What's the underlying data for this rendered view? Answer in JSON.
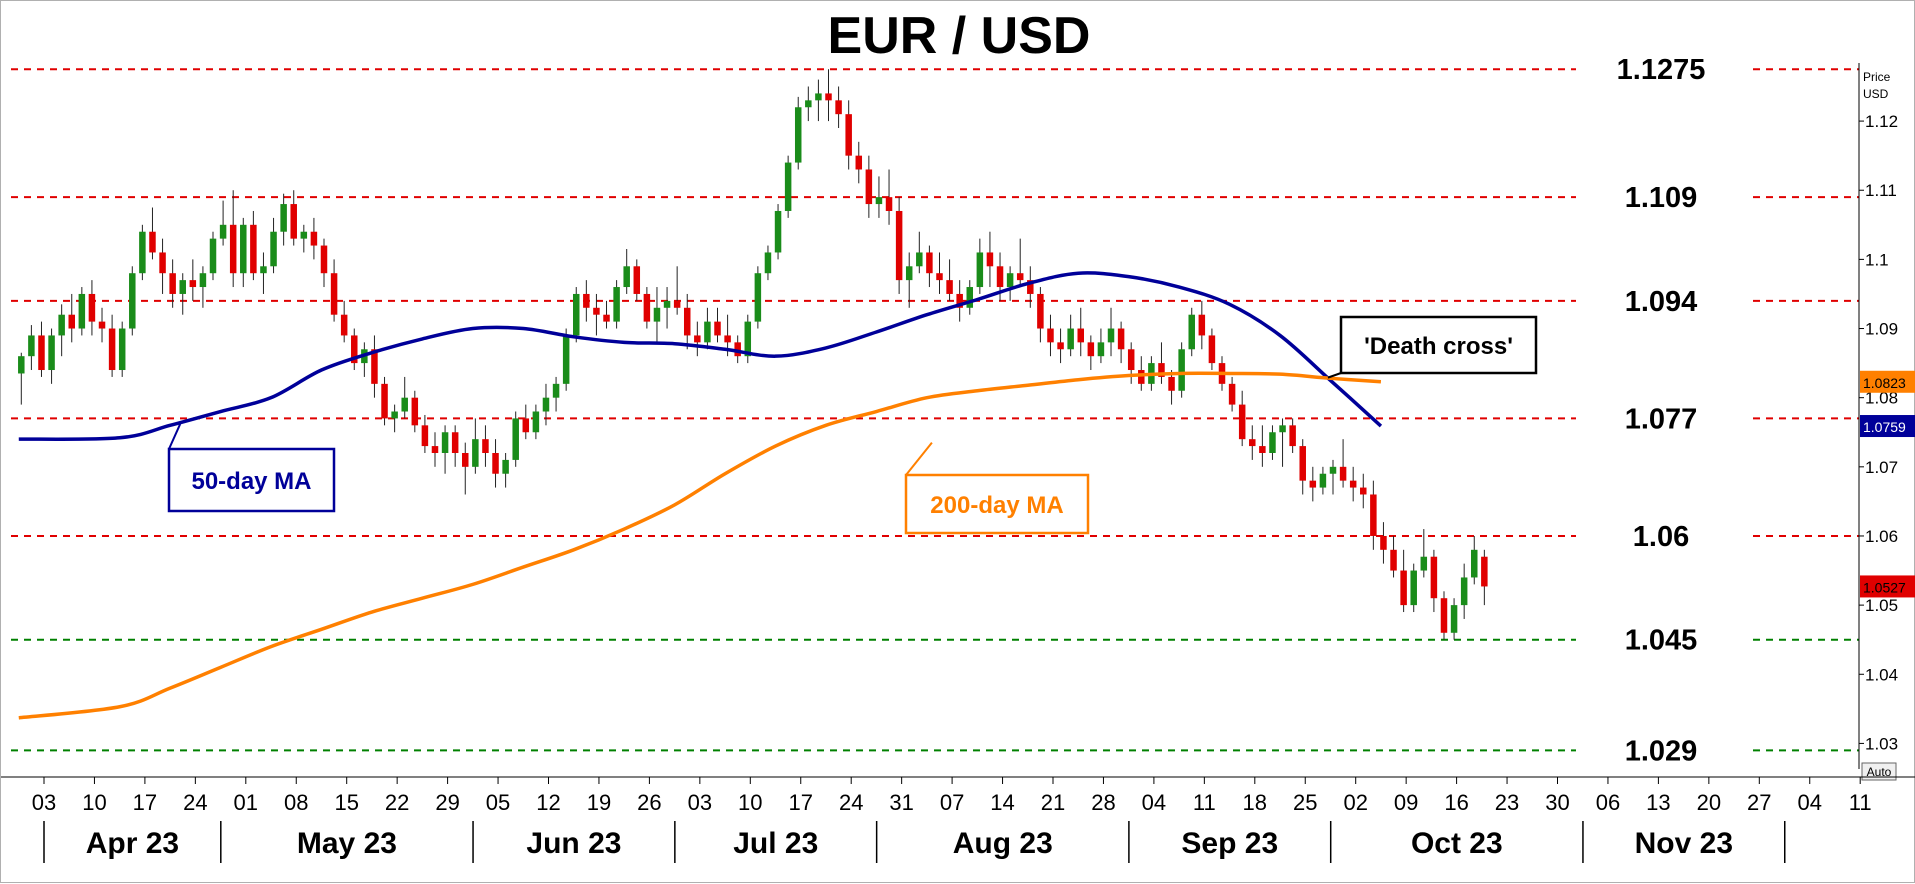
{
  "chart_data": {
    "type": "candlestick",
    "title": "EUR / USD",
    "axis_unit_label": [
      "Price",
      "USD"
    ],
    "auto_label": "Auto",
    "ylim": [
      1.0263,
      1.1284
    ],
    "y_ticks": [
      "1.12",
      "1.11",
      "1.1",
      "1.09",
      "1.08",
      "1.07",
      "1.06",
      "1.05",
      "1.04",
      "1.03"
    ],
    "x_ticks": [
      "03",
      "10",
      "17",
      "24",
      "01",
      "08",
      "15",
      "22",
      "29",
      "05",
      "12",
      "19",
      "26",
      "03",
      "10",
      "17",
      "24",
      "31",
      "07",
      "14",
      "21",
      "28",
      "04",
      "11",
      "18",
      "25",
      "02",
      "09",
      "16",
      "23",
      "30",
      "06",
      "13",
      "20",
      "27",
      "04",
      "11"
    ],
    "months": [
      {
        "label": "Apr 23",
        "start_week": 0
      },
      {
        "label": "May 23",
        "start_week": 4
      },
      {
        "label": "Jun 23",
        "start_week": 9
      },
      {
        "label": "Jul 23",
        "start_week": 13
      },
      {
        "label": "Aug 23",
        "start_week": 17
      },
      {
        "label": "Sep 23",
        "start_week": 22
      },
      {
        "label": "Oct 23",
        "start_week": 26
      },
      {
        "label": "Nov 23",
        "start_week": 31
      }
    ],
    "month_dividers": [
      4,
      9,
      13,
      17,
      22,
      26,
      31,
      35
    ],
    "levels": [
      {
        "value": 1.1275,
        "label": "1.1275",
        "color": "#e00000"
      },
      {
        "value": 1.109,
        "label": "1.109",
        "color": "#e00000"
      },
      {
        "value": 1.094,
        "label": "1.094",
        "color": "#e00000"
      },
      {
        "value": 1.077,
        "label": "1.077",
        "color": "#e00000"
      },
      {
        "value": 1.06,
        "label": "1.06",
        "color": "#e00000"
      },
      {
        "value": 1.045,
        "label": "1.045",
        "color": "#008000"
      },
      {
        "value": 1.029,
        "label": "1.029",
        "color": "#008000"
      }
    ],
    "candles_start_x_week": -0.45,
    "candles_per_week": 5,
    "candles": [
      [
        1.0835,
        1.0865,
        1.079,
        1.086
      ],
      [
        1.086,
        1.0905,
        1.084,
        1.089
      ],
      [
        1.089,
        1.091,
        1.083,
        1.084
      ],
      [
        1.084,
        1.09,
        1.082,
        1.089
      ],
      [
        1.089,
        1.0935,
        1.086,
        1.092
      ],
      [
        1.092,
        1.095,
        1.088,
        1.09
      ],
      [
        1.09,
        1.096,
        1.089,
        1.095
      ],
      [
        1.095,
        1.097,
        1.089,
        1.091
      ],
      [
        1.091,
        1.093,
        1.088,
        1.09
      ],
      [
        1.09,
        1.092,
        1.083,
        1.084
      ],
      [
        1.084,
        1.091,
        1.083,
        1.09
      ],
      [
        1.09,
        1.099,
        1.089,
        1.098
      ],
      [
        1.098,
        1.105,
        1.097,
        1.104
      ],
      [
        1.104,
        1.1075,
        1.1,
        1.101
      ],
      [
        1.101,
        1.103,
        1.095,
        1.098
      ],
      [
        1.098,
        1.1,
        1.093,
        1.095
      ],
      [
        1.095,
        1.098,
        1.092,
        1.097
      ],
      [
        1.097,
        1.1,
        1.094,
        1.096
      ],
      [
        1.096,
        1.099,
        1.093,
        1.098
      ],
      [
        1.098,
        1.104,
        1.097,
        1.103
      ],
      [
        1.103,
        1.1085,
        1.102,
        1.105
      ],
      [
        1.105,
        1.11,
        1.096,
        1.098
      ],
      [
        1.098,
        1.106,
        1.096,
        1.105
      ],
      [
        1.105,
        1.107,
        1.097,
        1.098
      ],
      [
        1.098,
        1.101,
        1.095,
        1.099
      ],
      [
        1.099,
        1.106,
        1.098,
        1.104
      ],
      [
        1.104,
        1.1095,
        1.102,
        1.108
      ],
      [
        1.108,
        1.11,
        1.102,
        1.103
      ],
      [
        1.103,
        1.105,
        1.101,
        1.104
      ],
      [
        1.104,
        1.106,
        1.1,
        1.102
      ],
      [
        1.102,
        1.103,
        1.096,
        1.098
      ],
      [
        1.098,
        1.1,
        1.091,
        1.092
      ],
      [
        1.092,
        1.094,
        1.088,
        1.089
      ],
      [
        1.089,
        1.09,
        1.084,
        1.085
      ],
      [
        1.085,
        1.088,
        1.083,
        1.087
      ],
      [
        1.087,
        1.089,
        1.08,
        1.082
      ],
      [
        1.082,
        1.083,
        1.076,
        1.077
      ],
      [
        1.077,
        1.079,
        1.075,
        1.078
      ],
      [
        1.078,
        1.083,
        1.077,
        1.08
      ],
      [
        1.08,
        1.081,
        1.075,
        1.076
      ],
      [
        1.076,
        1.0775,
        1.072,
        1.073
      ],
      [
        1.073,
        1.075,
        1.07,
        1.072
      ],
      [
        1.072,
        1.076,
        1.069,
        1.075
      ],
      [
        1.075,
        1.076,
        1.07,
        1.072
      ],
      [
        1.072,
        1.0735,
        1.066,
        1.07
      ],
      [
        1.07,
        1.077,
        1.069,
        1.074
      ],
      [
        1.074,
        1.076,
        1.07,
        1.072
      ],
      [
        1.072,
        1.074,
        1.067,
        1.069
      ],
      [
        1.069,
        1.072,
        1.067,
        1.071
      ],
      [
        1.071,
        1.078,
        1.07,
        1.077
      ],
      [
        1.077,
        1.079,
        1.074,
        1.075
      ],
      [
        1.075,
        1.079,
        1.074,
        1.078
      ],
      [
        1.078,
        1.082,
        1.076,
        1.08
      ],
      [
        1.08,
        1.083,
        1.078,
        1.082
      ],
      [
        1.082,
        1.09,
        1.081,
        1.089
      ],
      [
        1.089,
        1.096,
        1.088,
        1.095
      ],
      [
        1.095,
        1.097,
        1.091,
        1.093
      ],
      [
        1.093,
        1.095,
        1.089,
        1.092
      ],
      [
        1.092,
        1.094,
        1.09,
        1.091
      ],
      [
        1.091,
        1.097,
        1.09,
        1.096
      ],
      [
        1.096,
        1.1015,
        1.095,
        1.099
      ],
      [
        1.099,
        1.1,
        1.094,
        1.095
      ],
      [
        1.095,
        1.096,
        1.09,
        1.091
      ],
      [
        1.091,
        1.096,
        1.088,
        1.093
      ],
      [
        1.093,
        1.096,
        1.09,
        1.094
      ],
      [
        1.094,
        1.099,
        1.092,
        1.093
      ],
      [
        1.093,
        1.095,
        1.087,
        1.089
      ],
      [
        1.089,
        1.091,
        1.086,
        1.088
      ],
      [
        1.088,
        1.093,
        1.087,
        1.091
      ],
      [
        1.091,
        1.093,
        1.088,
        1.089
      ],
      [
        1.089,
        1.092,
        1.086,
        1.088
      ],
      [
        1.088,
        1.089,
        1.085,
        1.086
      ],
      [
        1.086,
        1.092,
        1.085,
        1.091
      ],
      [
        1.091,
        1.099,
        1.09,
        1.098
      ],
      [
        1.098,
        1.102,
        1.097,
        1.101
      ],
      [
        1.101,
        1.108,
        1.1,
        1.107
      ],
      [
        1.107,
        1.115,
        1.106,
        1.114
      ],
      [
        1.114,
        1.1235,
        1.113,
        1.122
      ],
      [
        1.122,
        1.125,
        1.12,
        1.123
      ],
      [
        1.123,
        1.126,
        1.12,
        1.124
      ],
      [
        1.124,
        1.1275,
        1.12,
        1.123
      ],
      [
        1.123,
        1.125,
        1.119,
        1.121
      ],
      [
        1.121,
        1.123,
        1.113,
        1.115
      ],
      [
        1.115,
        1.117,
        1.111,
        1.113
      ],
      [
        1.113,
        1.115,
        1.106,
        1.108
      ],
      [
        1.108,
        1.112,
        1.106,
        1.109
      ],
      [
        1.109,
        1.113,
        1.105,
        1.107
      ],
      [
        1.107,
        1.109,
        1.095,
        1.097
      ],
      [
        1.097,
        1.101,
        1.093,
        1.099
      ],
      [
        1.099,
        1.104,
        1.098,
        1.101
      ],
      [
        1.101,
        1.102,
        1.096,
        1.098
      ],
      [
        1.098,
        1.101,
        1.095,
        1.097
      ],
      [
        1.097,
        1.1,
        1.094,
        1.095
      ],
      [
        1.095,
        1.097,
        1.091,
        1.093
      ],
      [
        1.093,
        1.097,
        1.092,
        1.096
      ],
      [
        1.096,
        1.103,
        1.095,
        1.101
      ],
      [
        1.101,
        1.104,
        1.096,
        1.099
      ],
      [
        1.099,
        1.101,
        1.094,
        1.096
      ],
      [
        1.096,
        1.099,
        1.094,
        1.098
      ],
      [
        1.098,
        1.103,
        1.096,
        1.097
      ],
      [
        1.097,
        1.099,
        1.093,
        1.095
      ],
      [
        1.095,
        1.096,
        1.088,
        1.09
      ],
      [
        1.09,
        1.092,
        1.086,
        1.088
      ],
      [
        1.088,
        1.09,
        1.085,
        1.087
      ],
      [
        1.087,
        1.092,
        1.086,
        1.09
      ],
      [
        1.09,
        1.093,
        1.086,
        1.088
      ],
      [
        1.088,
        1.089,
        1.084,
        1.086
      ],
      [
        1.086,
        1.09,
        1.085,
        1.088
      ],
      [
        1.088,
        1.093,
        1.086,
        1.09
      ],
      [
        1.09,
        1.091,
        1.085,
        1.087
      ],
      [
        1.087,
        1.088,
        1.082,
        1.084
      ],
      [
        1.084,
        1.086,
        1.081,
        1.082
      ],
      [
        1.082,
        1.086,
        1.081,
        1.085
      ],
      [
        1.085,
        1.088,
        1.082,
        1.083
      ],
      [
        1.083,
        1.084,
        1.079,
        1.081
      ],
      [
        1.081,
        1.088,
        1.08,
        1.087
      ],
      [
        1.087,
        1.093,
        1.086,
        1.092
      ],
      [
        1.092,
        1.094,
        1.087,
        1.089
      ],
      [
        1.089,
        1.09,
        1.084,
        1.085
      ],
      [
        1.085,
        1.086,
        1.081,
        1.082
      ],
      [
        1.082,
        1.083,
        1.078,
        1.079
      ],
      [
        1.079,
        1.081,
        1.073,
        1.074
      ],
      [
        1.074,
        1.076,
        1.071,
        1.073
      ],
      [
        1.073,
        1.076,
        1.07,
        1.072
      ],
      [
        1.072,
        1.076,
        1.071,
        1.075
      ],
      [
        1.075,
        1.077,
        1.07,
        1.076
      ],
      [
        1.076,
        1.077,
        1.072,
        1.073
      ],
      [
        1.073,
        1.074,
        1.066,
        1.068
      ],
      [
        1.068,
        1.07,
        1.065,
        1.067
      ],
      [
        1.067,
        1.07,
        1.066,
        1.069
      ],
      [
        1.069,
        1.071,
        1.066,
        1.07
      ],
      [
        1.07,
        1.074,
        1.067,
        1.068
      ],
      [
        1.068,
        1.07,
        1.065,
        1.067
      ],
      [
        1.067,
        1.069,
        1.064,
        1.066
      ],
      [
        1.066,
        1.068,
        1.058,
        1.06
      ],
      [
        1.06,
        1.062,
        1.056,
        1.058
      ],
      [
        1.058,
        1.06,
        1.054,
        1.055
      ],
      [
        1.055,
        1.058,
        1.049,
        1.05
      ],
      [
        1.05,
        1.056,
        1.049,
        1.055
      ],
      [
        1.055,
        1.061,
        1.054,
        1.057
      ],
      [
        1.057,
        1.058,
        1.049,
        1.051
      ],
      [
        1.051,
        1.052,
        1.045,
        1.046
      ],
      [
        1.046,
        1.051,
        1.045,
        1.05
      ],
      [
        1.05,
        1.056,
        1.048,
        1.054
      ],
      [
        1.054,
        1.06,
        1.053,
        1.058
      ],
      [
        1.057,
        1.058,
        1.05,
        1.0527
      ]
    ],
    "series": [
      {
        "name": "50-day MA",
        "color": "#000099",
        "x_weeks": [
          -0.5,
          1.5,
          2.5,
          3.5,
          4.5,
          5.5,
          6.5,
          7.5,
          8.5,
          9.5,
          10.5,
          11.5,
          12.5,
          13.5,
          14.5,
          15.5,
          16.5,
          17.5,
          18.5,
          19.5,
          20.5,
          21.5,
          22.5,
          23.5,
          24.5,
          25.5,
          26.5
        ],
        "values": [
          1.074,
          1.0742,
          1.076,
          1.078,
          1.08,
          1.084,
          1.0865,
          1.0885,
          1.09,
          1.09,
          1.0888,
          1.088,
          1.0878,
          1.087,
          1.086,
          1.0872,
          1.0895,
          1.092,
          1.0942,
          1.0965,
          1.098,
          1.0975,
          1.096,
          1.0935,
          1.089,
          1.0825,
          1.0759
        ]
      },
      {
        "name": "200-day MA",
        "color": "#ff8000",
        "x_weeks": [
          -0.5,
          1.5,
          2.5,
          3.5,
          4.5,
          5.5,
          6.5,
          7.5,
          8.5,
          9.5,
          10.5,
          11.5,
          12.5,
          13.5,
          14.5,
          15.5,
          16.5,
          17.5,
          18.5,
          19.5,
          20.5,
          21.5,
          22.5,
          23.5,
          24.5,
          25.5,
          26.5
        ],
        "values": [
          1.0337,
          1.0353,
          1.038,
          1.041,
          1.044,
          1.0465,
          1.049,
          1.051,
          1.053,
          1.0555,
          1.058,
          1.061,
          1.0645,
          1.069,
          1.073,
          1.076,
          1.078,
          1.08,
          1.081,
          1.0818,
          1.0826,
          1.0832,
          1.0835,
          1.0835,
          1.0834,
          1.0828,
          1.0823
        ]
      }
    ],
    "price_tags": [
      {
        "label": "1.0823",
        "value": 1.0823,
        "bg": "#ff8000",
        "fg": "#000000"
      },
      {
        "label": "1.0759",
        "value": 1.0759,
        "bg": "#000099",
        "fg": "#ffffff"
      },
      {
        "label": "1.0527",
        "value": 1.0527,
        "bg": "#e00000",
        "fg": "#000000"
      }
    ],
    "annotations": [
      {
        "text": "50-day MA",
        "color": "#000099",
        "point_week": 2.7,
        "point_value": 1.0762
      },
      {
        "text": "200-day MA",
        "color": "#ff8000",
        "point_week": 17.6,
        "point_value": 1.0735
      },
      {
        "text": "'Death cross'",
        "color": "#000000",
        "point_week": 25.45,
        "point_value": 1.0829
      }
    ],
    "colors": {
      "up": "#1a8c1a",
      "down": "#e00000"
    },
    "grid": false
  }
}
